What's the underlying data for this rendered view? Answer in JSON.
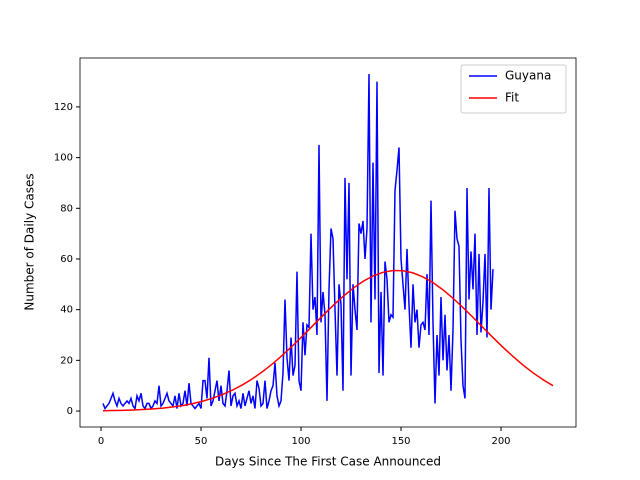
{
  "chart_data": {
    "type": "line",
    "xlabel": "Days Since The First Case Announced",
    "ylabel": "Number of Daily Cases",
    "xlim": [
      -10.5,
      237.5
    ],
    "ylim": [
      -6.3,
      139.3
    ],
    "xticks": [
      0,
      50,
      100,
      150,
      200
    ],
    "yticks": [
      0,
      20,
      40,
      60,
      80,
      100,
      120
    ],
    "legend": "upper right",
    "series": [
      {
        "name": "Guyana",
        "color": "#0000ff",
        "x": [
          1,
          2,
          3,
          4,
          5,
          6,
          7,
          8,
          9,
          10,
          11,
          12,
          13,
          14,
          15,
          16,
          17,
          18,
          19,
          20,
          21,
          22,
          23,
          24,
          25,
          26,
          27,
          28,
          29,
          30,
          31,
          32,
          33,
          34,
          35,
          36,
          37,
          38,
          39,
          40,
          41,
          42,
          43,
          44,
          45,
          46,
          47,
          48,
          49,
          50,
          51,
          52,
          53,
          54,
          55,
          56,
          57,
          58,
          59,
          60,
          61,
          62,
          63,
          64,
          65,
          66,
          67,
          68,
          69,
          70,
          71,
          72,
          73,
          74,
          75,
          76,
          77,
          78,
          79,
          80,
          81,
          82,
          83,
          84,
          85,
          86,
          87,
          88,
          89,
          90,
          91,
          92,
          93,
          94,
          95,
          96,
          97,
          98,
          99,
          100,
          101,
          102,
          103,
          104,
          105,
          106,
          107,
          108,
          109,
          110,
          111,
          112,
          113,
          114,
          115,
          116,
          117,
          118,
          119,
          120,
          121,
          122,
          123,
          124,
          125,
          126,
          127,
          128,
          129,
          130,
          131,
          132,
          133,
          134,
          135,
          136,
          137,
          138,
          139,
          140,
          141,
          142,
          143,
          144,
          145,
          146,
          147,
          148,
          149,
          150,
          151,
          152,
          153,
          154,
          155,
          156,
          157,
          158,
          159,
          160,
          161,
          162,
          163,
          164,
          165,
          166,
          167,
          168,
          169,
          170,
          171,
          172,
          173,
          174,
          175,
          176,
          177,
          178,
          179,
          180,
          181,
          182,
          183,
          184,
          185,
          186,
          187,
          188,
          189,
          190,
          191,
          192,
          193,
          194,
          195,
          196
        ],
        "values": [
          3,
          1,
          2,
          3,
          5,
          7,
          4,
          2,
          5,
          3,
          2,
          3,
          4,
          3,
          5,
          2,
          1,
          6,
          4,
          7,
          2,
          1,
          3,
          3,
          1,
          2,
          4,
          3,
          10,
          2,
          3,
          5,
          7,
          4,
          3,
          2,
          6,
          1,
          7,
          2,
          3,
          8,
          2,
          11,
          3,
          2,
          1,
          2,
          3,
          1,
          12,
          12,
          5,
          21,
          2,
          4,
          8,
          12,
          4,
          10,
          3,
          2,
          8,
          16,
          2,
          6,
          7,
          2,
          4,
          1,
          7,
          2,
          5,
          8,
          3,
          6,
          1,
          12,
          9,
          2,
          3,
          12,
          1,
          4,
          8,
          10,
          19,
          6,
          2,
          4,
          15,
          44,
          21,
          12,
          29,
          14,
          18,
          55,
          12,
          8,
          35,
          22,
          34,
          33,
          70,
          40,
          45,
          30,
          105,
          35,
          47,
          38,
          4,
          48,
          72,
          68,
          40,
          14,
          50,
          42,
          8,
          92,
          52,
          90,
          14,
          50,
          40,
          32,
          74,
          70,
          75,
          60,
          72,
          133,
          35,
          98,
          44,
          130,
          15,
          47,
          14,
          59,
          52,
          35,
          38,
          37,
          87,
          95,
          104,
          60,
          50,
          40,
          64,
          42,
          25,
          50,
          35,
          40,
          25,
          34,
          35,
          32,
          54,
          30,
          83,
          35,
          3,
          30,
          14,
          45,
          20,
          38,
          16,
          30,
          8,
          32,
          79,
          68,
          65,
          28,
          10,
          5,
          88,
          44,
          63,
          48,
          70,
          30,
          62,
          31,
          43,
          62,
          29,
          88,
          40,
          56
        ]
      },
      {
        "name": "Fit",
        "color": "#ff0000",
        "x": [
          1,
          6,
          11,
          16,
          21,
          26,
          31,
          36,
          41,
          46,
          51,
          56,
          61,
          66,
          71,
          76,
          81,
          86,
          91,
          96,
          101,
          106,
          111,
          116,
          121,
          126,
          131,
          136,
          141,
          146,
          151,
          156,
          161,
          166,
          171,
          176,
          181,
          186,
          191,
          196,
          201,
          206,
          211,
          216,
          221,
          226
        ],
        "values": [
          0.13,
          0.19,
          0.28,
          0.41,
          0.59,
          0.84,
          1.17,
          1.62,
          2.2,
          2.96,
          3.92,
          5.12,
          6.58,
          8.35,
          10.45,
          12.89,
          15.67,
          18.79,
          22.23,
          25.91,
          29.79,
          33.77,
          37.73,
          41.61,
          45.2,
          48.43,
          51.16,
          53.29,
          54.74,
          55.44,
          55.36,
          54.51,
          52.92,
          50.66,
          47.82,
          44.5,
          40.84,
          36.95,
          32.97,
          29.0,
          25.16,
          21.52,
          18.14,
          15.08,
          12.37,
          10.0
        ]
      }
    ]
  }
}
